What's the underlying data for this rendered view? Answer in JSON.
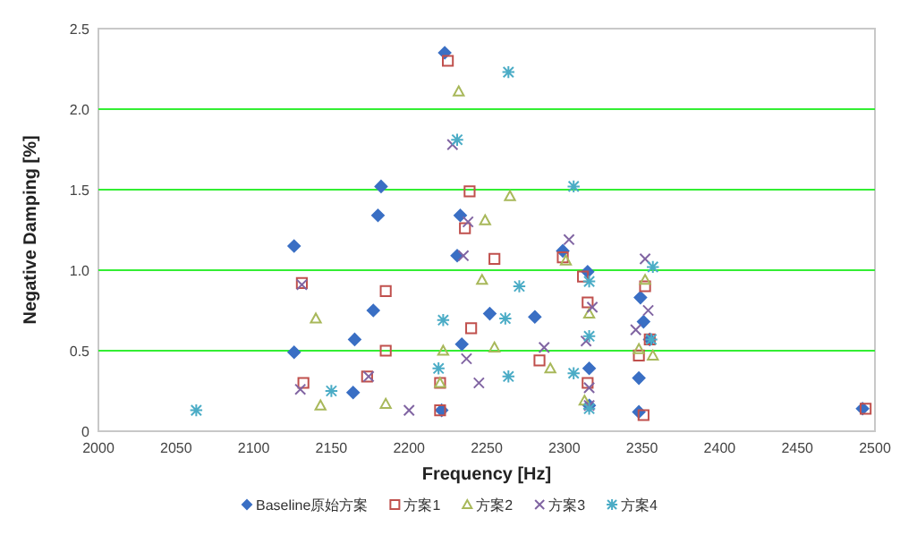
{
  "chart_data": {
    "type": "scatter",
    "xlabel": "Frequency [Hz]",
    "ylabel": "Negative Damping [%]",
    "xlim": [
      2000,
      2500
    ],
    "xticks": [
      2000,
      2050,
      2100,
      2150,
      2200,
      2250,
      2300,
      2350,
      2400,
      2450,
      2500
    ],
    "ylim": [
      0,
      2.5
    ],
    "yticks": [
      0,
      0.5,
      {
        "value": 1,
        "label": "1.0"
      },
      1.5,
      {
        "value": 2,
        "label": "2.0"
      },
      2.5
    ],
    "grid": "y",
    "legend": "bottom",
    "series": [
      {
        "name": "Baseline原始方案",
        "color": "#3a6fc4",
        "marker": "diamond",
        "x": [
          2223,
          2182,
          2180,
          2126,
          2233,
          2231,
          2252,
          2177,
          2165,
          2126,
          2234,
          2164,
          2221,
          2299,
          2315,
          2281,
          2349,
          2351,
          2355,
          2316,
          2348,
          2316,
          2348,
          2492
        ],
        "values": [
          2.35,
          1.52,
          1.34,
          1.15,
          1.34,
          1.09,
          0.73,
          0.75,
          0.57,
          0.49,
          0.54,
          0.24,
          0.13,
          1.12,
          0.99,
          0.71,
          0.83,
          0.68,
          0.57,
          0.39,
          0.33,
          0.16,
          0.12,
          0.14
        ]
      },
      {
        "name": "方案1",
        "color": "#c0504d",
        "marker": "square",
        "x": [
          2225,
          2239,
          2236,
          2255,
          2131,
          2185,
          2240,
          2185,
          2132,
          2173,
          2220,
          2220,
          2299,
          2312,
          2315,
          2284,
          2315,
          2352,
          2355,
          2348,
          2351,
          2494
        ],
        "values": [
          2.3,
          1.49,
          1.26,
          1.07,
          0.92,
          0.87,
          0.64,
          0.5,
          0.3,
          0.34,
          0.3,
          0.13,
          1.08,
          0.96,
          0.8,
          0.44,
          0.3,
          0.9,
          0.57,
          0.47,
          0.1,
          0.14
        ]
      },
      {
        "name": "方案2",
        "color": "#a8b85a",
        "marker": "triangle",
        "x": [
          2232,
          2249,
          2247,
          2140,
          2222,
          2255,
          2143,
          2185,
          2220,
          2265,
          2301,
          2316,
          2291,
          2352,
          2357,
          2313,
          2348
        ],
        "values": [
          2.11,
          1.31,
          0.94,
          0.7,
          0.5,
          0.52,
          0.16,
          0.17,
          0.3,
          1.46,
          1.06,
          0.73,
          0.39,
          0.94,
          0.47,
          0.19,
          0.51
        ]
      },
      {
        "name": "方案3",
        "color": "#8064a2",
        "marker": "cross",
        "x": [
          2228,
          2238,
          2235,
          2131,
          2237,
          2245,
          2174,
          2130,
          2200,
          2303,
          2318,
          2287,
          2314,
          2316,
          2352,
          2354,
          2346,
          2316
        ],
        "values": [
          1.78,
          1.3,
          1.09,
          0.91,
          0.45,
          0.3,
          0.34,
          0.26,
          0.13,
          1.19,
          0.77,
          0.52,
          0.56,
          0.27,
          1.07,
          0.75,
          0.63,
          0.16
        ]
      },
      {
        "name": "方案4",
        "color": "#4bacc6",
        "x": [
          2063,
          2150,
          2231,
          2222,
          2219,
          2264,
          2306,
          2271,
          2262,
          2264,
          2306,
          2316,
          2316,
          2357,
          2356,
          2316
        ],
        "values": [
          0.13,
          0.25,
          1.81,
          0.69,
          0.39,
          2.23,
          1.52,
          0.9,
          0.7,
          0.34,
          0.36,
          0.93,
          0.59,
          1.02,
          0.57,
          0.14
        ]
      }
    ]
  }
}
